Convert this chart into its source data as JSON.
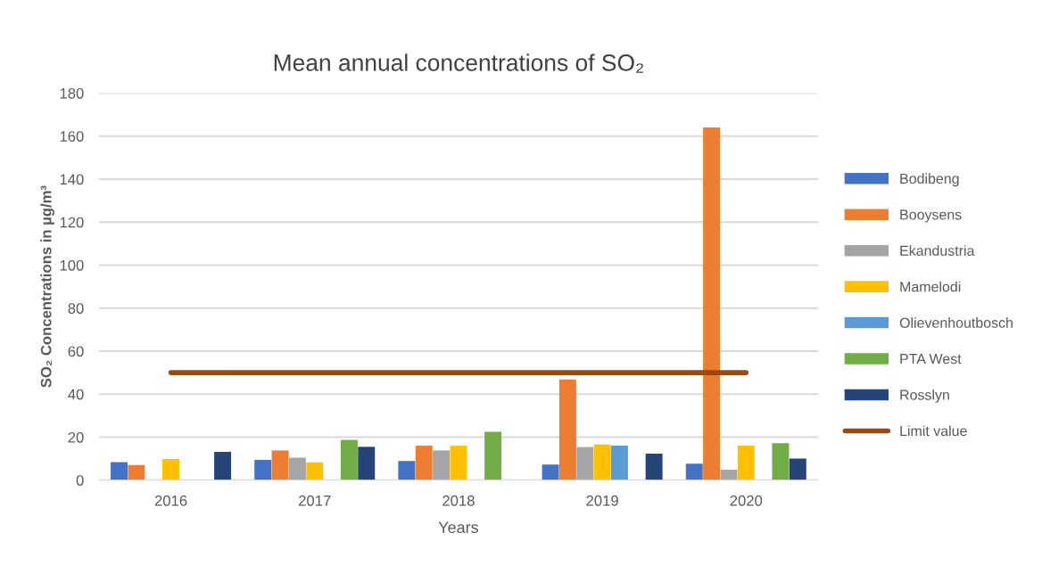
{
  "chart_data": {
    "type": "bar",
    "title": "Mean annual concentrations of SO₂",
    "xlabel": "Years",
    "ylabel": "SO₂ Concentrations in µg/m³",
    "categories": [
      "2016",
      "2017",
      "2018",
      "2019",
      "2020"
    ],
    "series": [
      {
        "name": "Bodibeng",
        "color": "#4472c4",
        "values": [
          8.4,
          9.4,
          8.9,
          7.2,
          7.7
        ]
      },
      {
        "name": "Booysens",
        "color": "#ed7d31",
        "values": [
          7.0,
          13.8,
          16.0,
          46.8,
          164
        ]
      },
      {
        "name": "Ekandustria",
        "color": "#a5a5a5",
        "values": [
          null,
          10.5,
          13.8,
          15.4,
          4.9
        ]
      },
      {
        "name": "Mamelodi",
        "color": "#ffc000",
        "values": [
          9.8,
          8.3,
          16.0,
          16.6,
          16.1
        ]
      },
      {
        "name": "Olievenhoutbosch",
        "color": "#5b9bd5",
        "values": [
          null,
          null,
          null,
          16.1,
          null
        ]
      },
      {
        "name": "PTA West",
        "color": "#70ad47",
        "values": [
          null,
          18.7,
          22.5,
          null,
          17.2
        ]
      },
      {
        "name": "Rosslyn",
        "color": "#264478",
        "values": [
          13.2,
          15.5,
          null,
          12.3,
          10.0
        ]
      },
      {
        "name": "Limit value",
        "type": "line",
        "color": "#9e480e",
        "values": [
          50,
          50,
          50,
          50,
          50
        ]
      }
    ],
    "ylim": [
      0,
      180
    ],
    "yticks": [
      0,
      20,
      40,
      60,
      80,
      100,
      120,
      140,
      160,
      180
    ],
    "grid": "y",
    "legend": "right"
  }
}
